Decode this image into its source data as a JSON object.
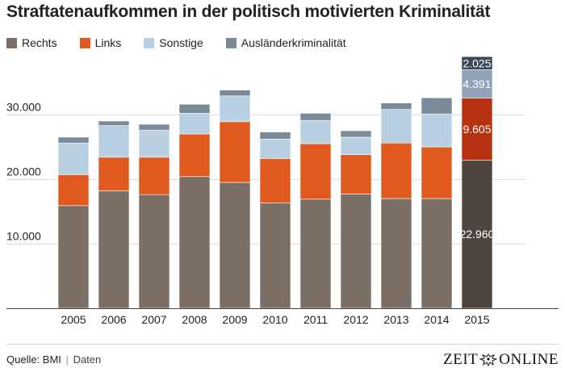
{
  "header": {
    "title": "Straftatenaufkommen in der politisch motivierten Kriminalität"
  },
  "footer": {
    "source": "Quelle: BMI",
    "separator": "|",
    "data_link": "Daten"
  },
  "logo": {
    "left": "ZEIT",
    "right": "ONLINE"
  },
  "colors": {
    "rechts": "#7b6e65",
    "links": "#e05a1f",
    "sonstige": "#b9cfe2",
    "auslaender": "#7b8a99",
    "rechts_hl": "#4e453e",
    "links_hl": "#b5310f",
    "sonstige_hl": "#8fa4b7",
    "auslaender_hl": "#3b4858"
  },
  "chart_data": {
    "type": "bar",
    "stacked": true,
    "title": "Straftatenaufkommen in der politisch motivierten Kriminalität",
    "categories": [
      "2005",
      "2006",
      "2007",
      "2008",
      "2009",
      "2010",
      "2011",
      "2012",
      "2013",
      "2014",
      "2015"
    ],
    "series": [
      {
        "name": "Rechts",
        "values": [
          15900,
          18200,
          17600,
          20400,
          19500,
          16300,
          16900,
          17700,
          17000,
          17000,
          22960
        ]
      },
      {
        "name": "Links",
        "values": [
          4800,
          5200,
          5800,
          6600,
          9400,
          6900,
          8600,
          6100,
          8600,
          8000,
          9605
        ]
      },
      {
        "name": "Sonstige",
        "values": [
          4900,
          4900,
          4200,
          3200,
          4000,
          3000,
          3600,
          2700,
          5200,
          5100,
          4391
        ]
      },
      {
        "name": "Ausländerkriminalität",
        "values": [
          900,
          700,
          900,
          1400,
          900,
          1100,
          1100,
          1000,
          1000,
          2500,
          2025
        ]
      }
    ],
    "highlight_category": "2015",
    "data_labels": {
      "category": "2015",
      "labels": [
        "22.960",
        "9.605",
        "4.391",
        "2.025"
      ]
    },
    "yticks": [
      10000,
      20000,
      30000
    ],
    "ytick_labels": [
      "10.000",
      "20.000",
      "30.000"
    ],
    "ylim": [
      0,
      40000
    ],
    "grid": true,
    "legend_position": "top-left"
  }
}
